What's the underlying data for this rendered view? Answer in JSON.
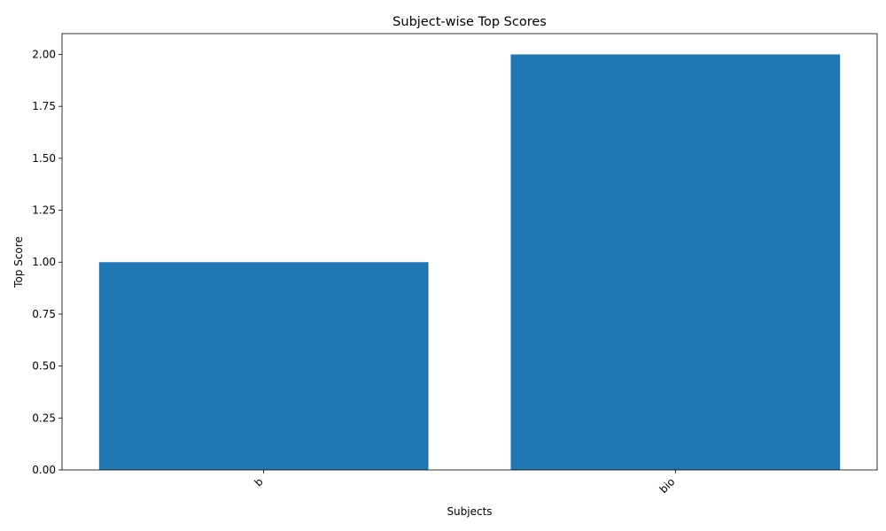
{
  "chart_data": {
    "type": "bar",
    "title": "Subject-wise Top Scores",
    "xlabel": "Subjects",
    "ylabel": "Top Score",
    "categories": [
      "b",
      "bio"
    ],
    "values": [
      1,
      2
    ],
    "ylim": [
      0,
      2.1
    ],
    "yticks": [
      "0.00",
      "0.25",
      "0.50",
      "0.75",
      "1.00",
      "1.25",
      "1.50",
      "1.75",
      "2.00"
    ],
    "xtick_rotation": "45 degrees",
    "grid": false,
    "legend": "none",
    "bar_color": "#1f77b4"
  }
}
